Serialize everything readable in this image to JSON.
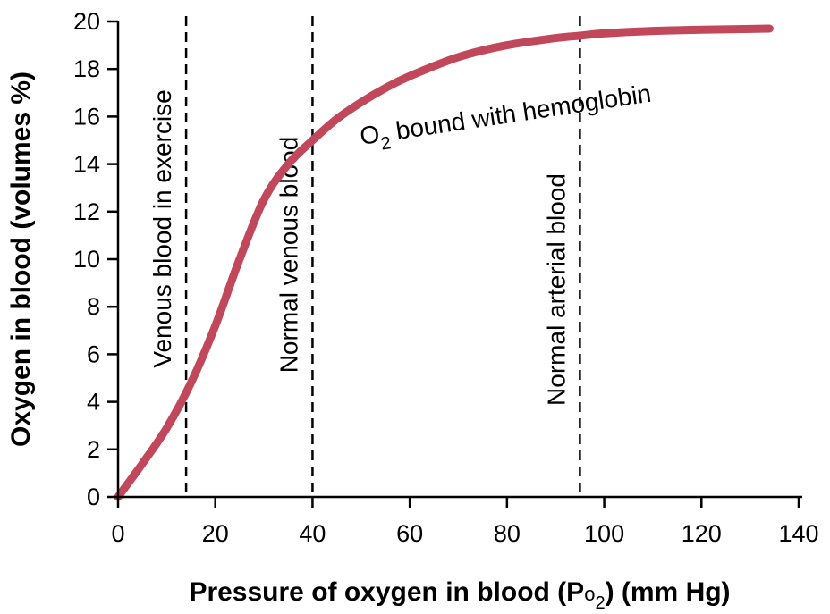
{
  "chart_data": {
    "type": "line",
    "title": "",
    "xlabel_main": "Pressure of oxygen in blood (P",
    "xlabel_sub_o": "o",
    "xlabel_sub_2": "2",
    "xlabel_end": ") (mm Hg)",
    "ylabel": "Oxygen in blood (volumes %)",
    "xlim": [
      0,
      140
    ],
    "ylim": [
      0,
      20
    ],
    "xticks": [
      0,
      20,
      40,
      60,
      80,
      100,
      120,
      140
    ],
    "yticks": [
      0,
      2,
      4,
      6,
      8,
      10,
      12,
      14,
      16,
      18,
      20
    ],
    "grid": false,
    "curve_color": "#c0485a",
    "series": [
      {
        "x": [
          0,
          5,
          10,
          15,
          20,
          25,
          30,
          35,
          40,
          45,
          50,
          55,
          60,
          70,
          80,
          90,
          95,
          100,
          110,
          120,
          134
        ],
        "y": [
          0,
          1.4,
          2.9,
          4.8,
          7.2,
          10.0,
          12.5,
          14.0,
          15.0,
          15.9,
          16.6,
          17.2,
          17.7,
          18.5,
          19.0,
          19.3,
          19.4,
          19.5,
          19.6,
          19.65,
          19.7
        ]
      }
    ],
    "curve_label_main": "O",
    "curve_label_sub": "2",
    "curve_label_rest": " bound with hemoglobin",
    "reference_lines": [
      {
        "x": 14,
        "label": "Venous blood in exercise"
      },
      {
        "x": 40,
        "label": "Normal venous blood"
      },
      {
        "x": 95,
        "label": "Normal arterial blood"
      }
    ]
  }
}
